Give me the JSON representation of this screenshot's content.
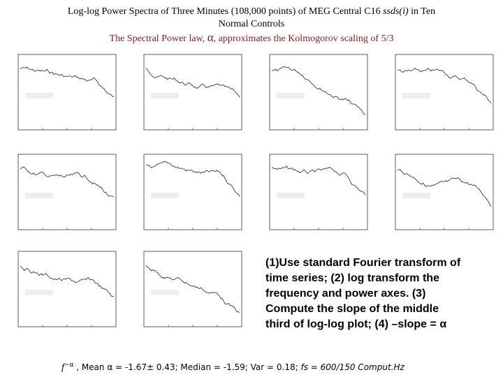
{
  "header": {
    "title_line1": [
      "Log-log Power Spectra of Three Minutes (108,000 points) of MEG Central C16 ",
      "ssds(i)",
      " in Ten"
    ],
    "title_line2": "Normal Controls",
    "subtitle": [
      "The Spectral Power law, ",
      "α",
      ", approximates  the Kolmogorov scaling of 5/3"
    ]
  },
  "caption": {
    "lines": [
      "(1)Use standard Fourier transform of",
      "time series; (2) log transform the",
      "frequency and power axes. (3)",
      "Compute the slope of the middle",
      "third of log-log plot; (4) –slope = α"
    ]
  },
  "footer": [
    "f",
    "−α",
    " , Mean α = -1.67± 0.43; Median = -1.59; Var = 0.18; ",
    "fs = 600/150 Comput.Hz"
  ]
}
